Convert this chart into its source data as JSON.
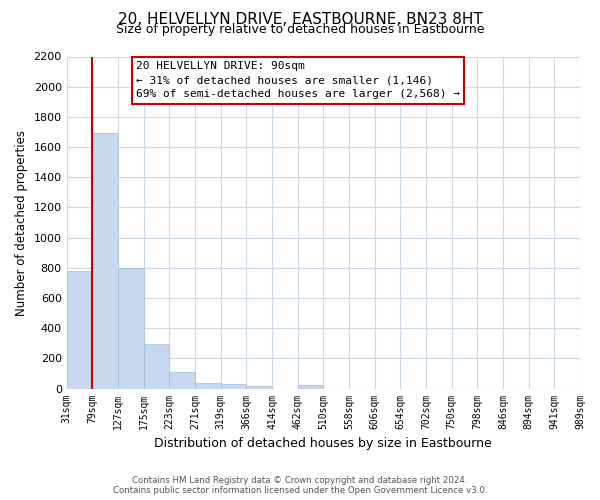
{
  "title": "20, HELVELLYN DRIVE, EASTBOURNE, BN23 8HT",
  "subtitle": "Size of property relative to detached houses in Eastbourne",
  "xlabel": "Distribution of detached houses by size in Eastbourne",
  "ylabel": "Number of detached properties",
  "bins": [
    "31sqm",
    "79sqm",
    "127sqm",
    "175sqm",
    "223sqm",
    "271sqm",
    "319sqm",
    "366sqm",
    "414sqm",
    "462sqm",
    "510sqm",
    "558sqm",
    "606sqm",
    "654sqm",
    "702sqm",
    "750sqm",
    "798sqm",
    "846sqm",
    "894sqm",
    "941sqm",
    "989sqm"
  ],
  "values": [
    780,
    1690,
    800,
    295,
    110,
    35,
    28,
    20,
    0,
    25,
    0,
    0,
    0,
    0,
    0,
    0,
    0,
    0,
    0,
    0
  ],
  "bar_color": "#c5d8ed",
  "bar_edge_color": "#a0bcd8",
  "vline_x_index": 1,
  "vline_color": "#cc0000",
  "ylim": [
    0,
    2200
  ],
  "yticks": [
    0,
    200,
    400,
    600,
    800,
    1000,
    1200,
    1400,
    1600,
    1800,
    2000,
    2200
  ],
  "annotation_title": "20 HELVELLYN DRIVE: 90sqm",
  "annotation_line1": "← 31% of detached houses are smaller (1,146)",
  "annotation_line2": "69% of semi-detached houses are larger (2,568) →",
  "footnote1": "Contains HM Land Registry data © Crown copyright and database right 2024.",
  "footnote2": "Contains public sector information licensed under the Open Government Licence v3.0.",
  "background_color": "#ffffff",
  "grid_color": "#ccd9e8"
}
